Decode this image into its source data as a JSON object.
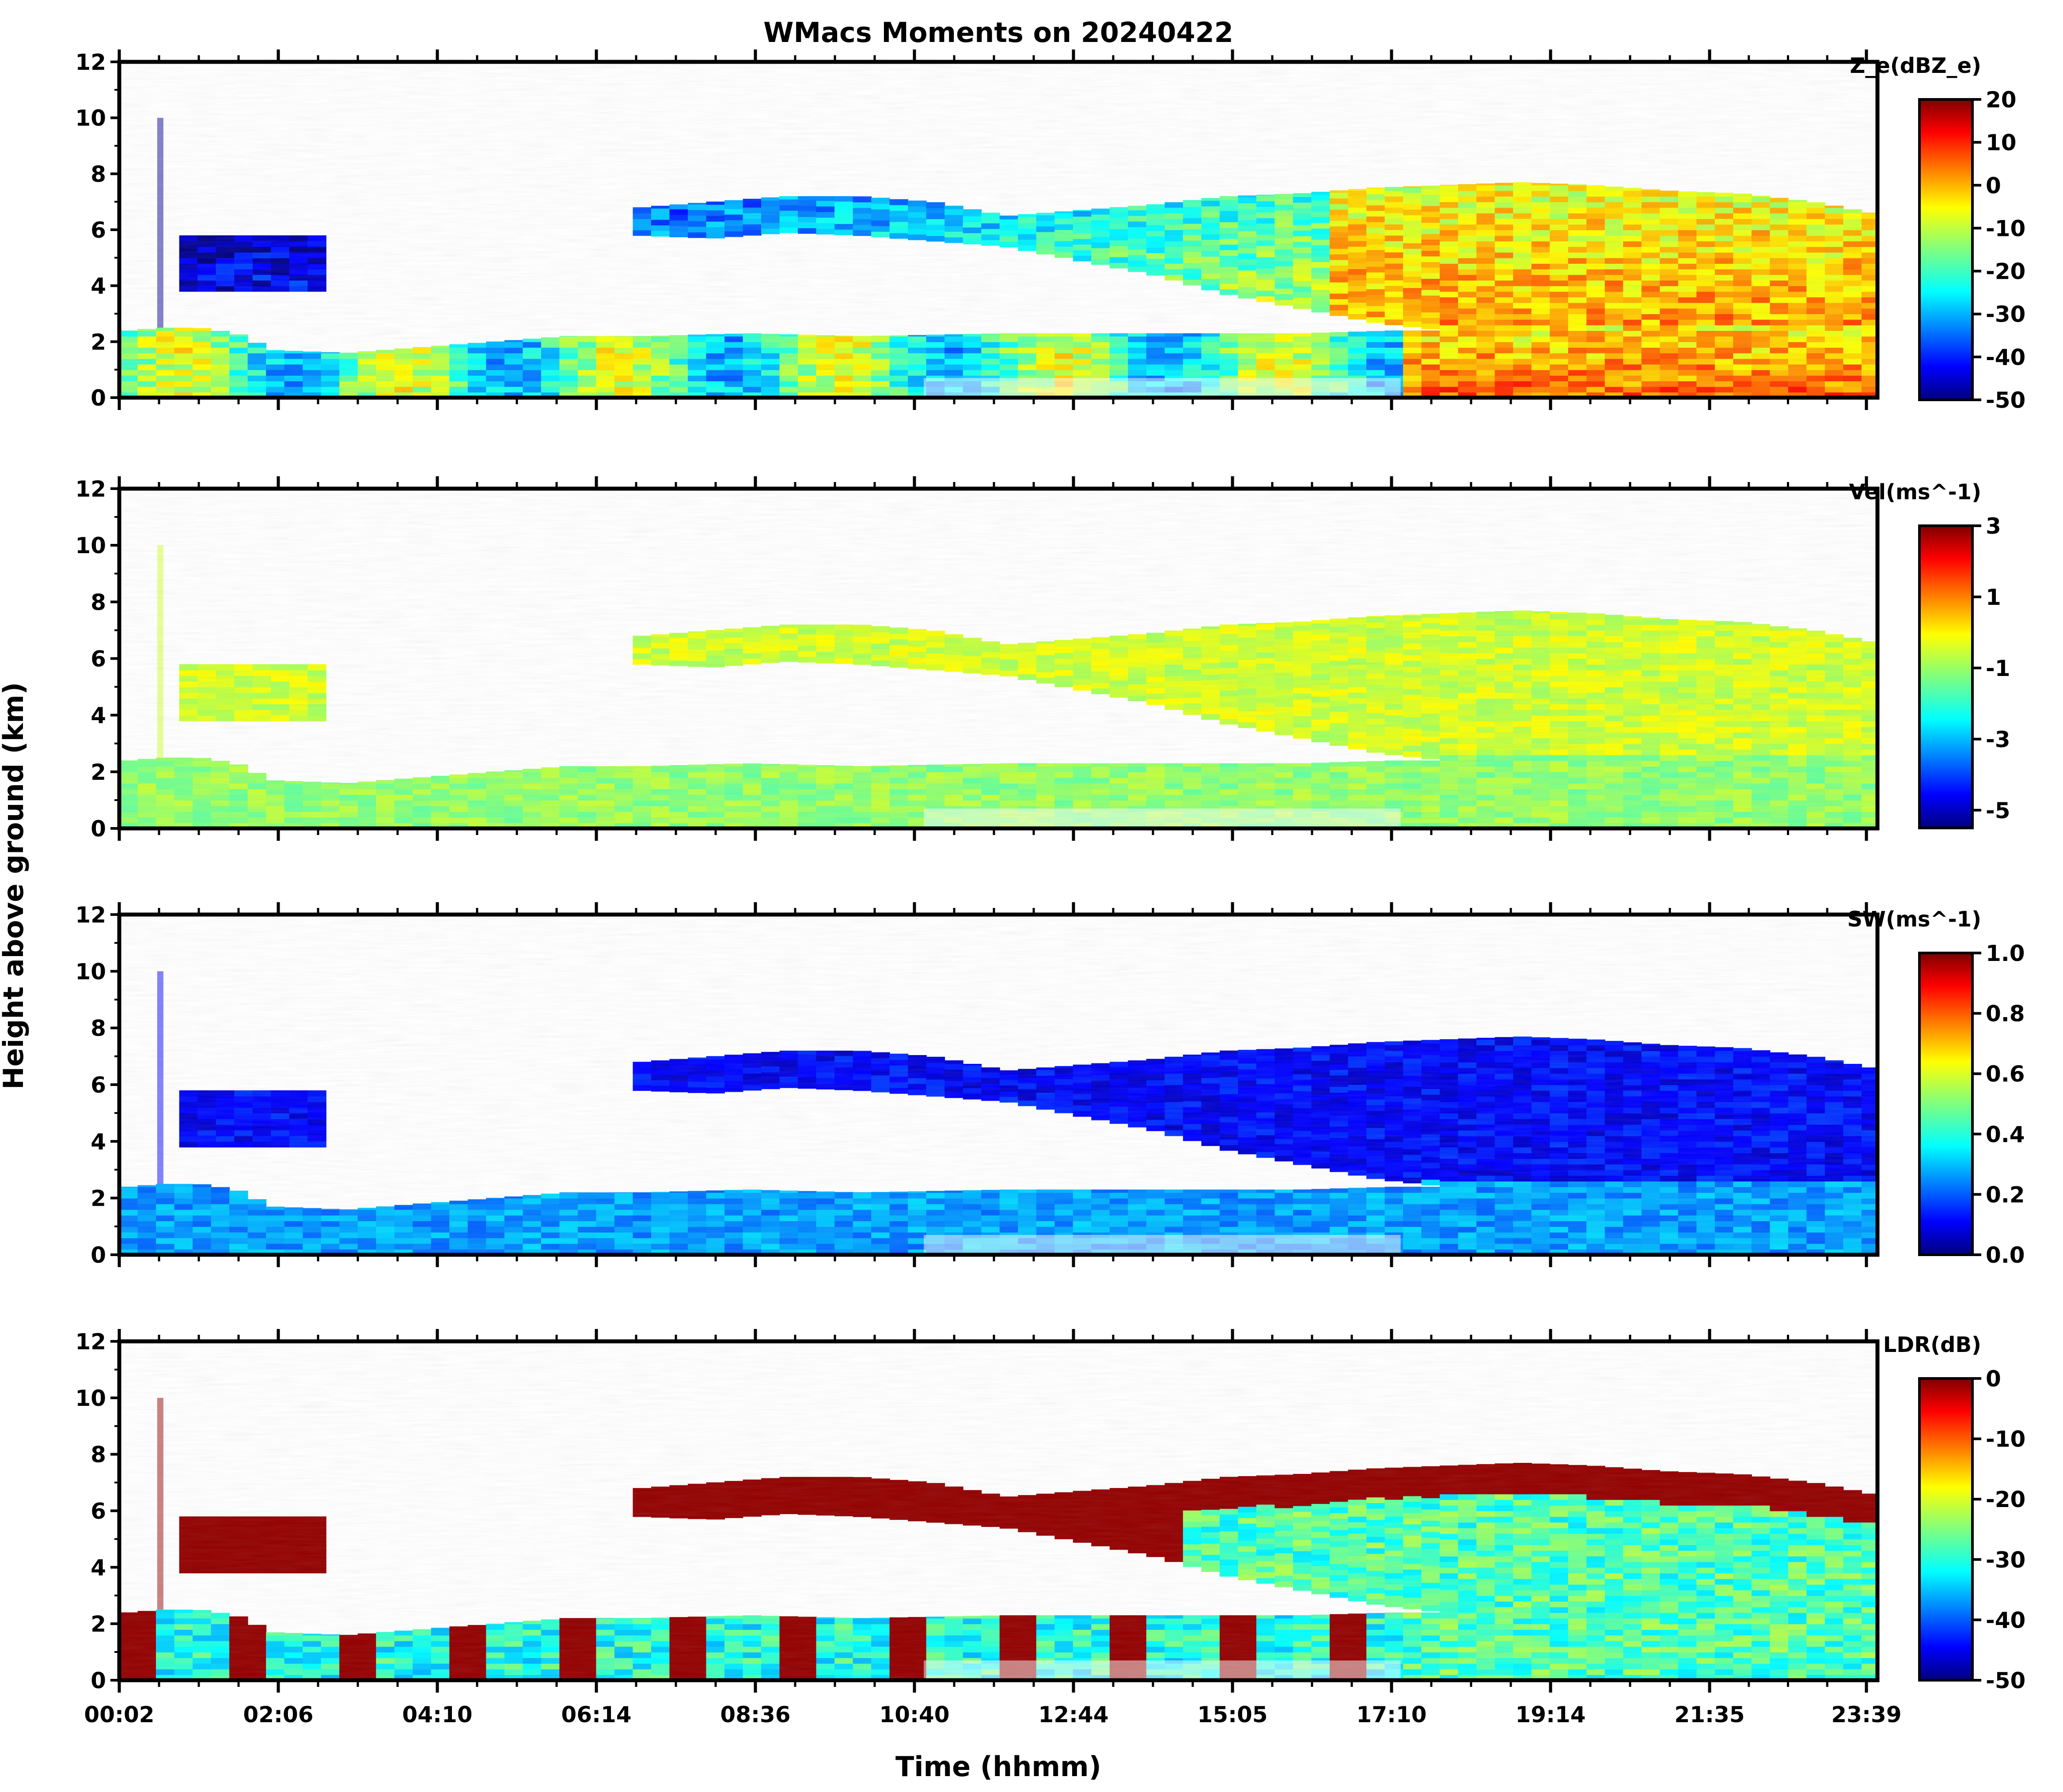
{
  "figure": {
    "title": "WMacs Moments on 20240422",
    "ylabel": "Height above ground (km)",
    "xlabel": "Time (hhmm)"
  },
  "chart_data": [
    {
      "type": "heatmap",
      "moment": "Ze",
      "colorbar_label": "Z_e(dBZ_e)",
      "colormap": "jet",
      "clim": [
        -50,
        20
      ],
      "colorbar_ticks": [
        "20",
        "10",
        "0",
        "-10",
        "-20",
        "-30",
        "-40",
        "-50"
      ],
      "ylim": [
        0,
        12
      ],
      "yticks": [
        "0",
        "2",
        "4",
        "6",
        "8",
        "10",
        "12"
      ],
      "xticks": [
        "00:02",
        "02:06",
        "04:10",
        "06:14",
        "08:36",
        "10:40",
        "12:44",
        "15:05",
        "17:10",
        "19:14",
        "21:35",
        "23:39"
      ]
    },
    {
      "type": "heatmap",
      "moment": "Vel",
      "colorbar_label": "Vel(ms^-1)",
      "colormap": "jet",
      "clim": [
        -5.5,
        3
      ],
      "colorbar_ticks": [
        "3",
        "1",
        "-1",
        "-3",
        "-5"
      ],
      "ylim": [
        0,
        12
      ],
      "yticks": [
        "0",
        "2",
        "4",
        "6",
        "8",
        "10",
        "12"
      ],
      "xticks": [
        "00:02",
        "02:06",
        "04:10",
        "06:14",
        "08:36",
        "10:40",
        "12:44",
        "15:05",
        "17:10",
        "19:14",
        "21:35",
        "23:39"
      ]
    },
    {
      "type": "heatmap",
      "moment": "SW",
      "colorbar_label": "SW(ms^-1)",
      "colormap": "jet",
      "clim": [
        0,
        1
      ],
      "colorbar_ticks": [
        "1.0",
        "0.8",
        "0.6",
        "0.4",
        "0.2",
        "0.0"
      ],
      "ylim": [
        0,
        12
      ],
      "yticks": [
        "0",
        "2",
        "4",
        "6",
        "8",
        "10",
        "12"
      ],
      "xticks": [
        "00:02",
        "02:06",
        "04:10",
        "06:14",
        "08:36",
        "10:40",
        "12:44",
        "15:05",
        "17:10",
        "19:14",
        "21:35",
        "23:39"
      ]
    },
    {
      "type": "heatmap",
      "moment": "LDR",
      "colorbar_label": "LDR(dB)",
      "colormap": "jet",
      "clim": [
        -50,
        0
      ],
      "colorbar_ticks": [
        "0",
        "-10",
        "-20",
        "-30",
        "-40",
        "-50"
      ],
      "ylim": [
        0,
        12
      ],
      "yticks": [
        "0",
        "2",
        "4",
        "6",
        "8",
        "10",
        "12"
      ],
      "xticks": [
        "00:02",
        "02:06",
        "04:10",
        "06:14",
        "08:36",
        "10:40",
        "12:44",
        "15:05",
        "17:10",
        "19:14",
        "21:35",
        "23:39"
      ]
    }
  ],
  "colors": {
    "jet": [
      "#00007f",
      "#0000ff",
      "#007fff",
      "#00ffff",
      "#7fff7f",
      "#ffff00",
      "#ff7f00",
      "#ff0000",
      "#7f0000"
    ]
  }
}
